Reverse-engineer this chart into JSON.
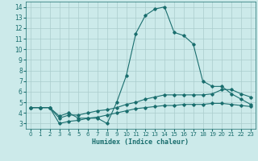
{
  "xlabel": "Humidex (Indice chaleur)",
  "background_color": "#cceaea",
  "grid_color": "#aacccc",
  "line_color": "#1a6e6e",
  "x_values": [
    0,
    1,
    2,
    3,
    4,
    5,
    6,
    7,
    8,
    9,
    10,
    11,
    12,
    13,
    14,
    15,
    16,
    17,
    18,
    19,
    20,
    21,
    22,
    23
  ],
  "curve1": [
    4.5,
    4.5,
    4.5,
    3.7,
    4.0,
    3.5,
    3.5,
    3.5,
    3.0,
    5.0,
    7.5,
    11.5,
    13.2,
    13.8,
    14.0,
    11.6,
    11.3,
    10.5,
    7.0,
    6.5,
    6.5,
    5.8,
    5.3,
    4.8
  ],
  "curve2": [
    4.5,
    4.5,
    4.5,
    3.5,
    3.8,
    3.8,
    4.0,
    4.2,
    4.3,
    4.5,
    4.8,
    5.0,
    5.3,
    5.5,
    5.7,
    5.7,
    5.7,
    5.7,
    5.7,
    5.8,
    6.2,
    6.2,
    5.8,
    5.5
  ],
  "curve3": [
    4.5,
    4.5,
    4.5,
    3.0,
    3.2,
    3.3,
    3.5,
    3.6,
    3.8,
    4.0,
    4.2,
    4.4,
    4.5,
    4.6,
    4.7,
    4.7,
    4.8,
    4.8,
    4.8,
    4.9,
    4.9,
    4.8,
    4.7,
    4.6
  ],
  "ylim": [
    2.5,
    14.5
  ],
  "xlim": [
    -0.5,
    23.5
  ],
  "yticks": [
    3,
    4,
    5,
    6,
    7,
    8,
    9,
    10,
    11,
    12,
    13,
    14
  ],
  "xticks": [
    0,
    1,
    2,
    3,
    4,
    5,
    6,
    7,
    8,
    9,
    10,
    11,
    12,
    13,
    14,
    15,
    16,
    17,
    18,
    19,
    20,
    21,
    22,
    23
  ]
}
